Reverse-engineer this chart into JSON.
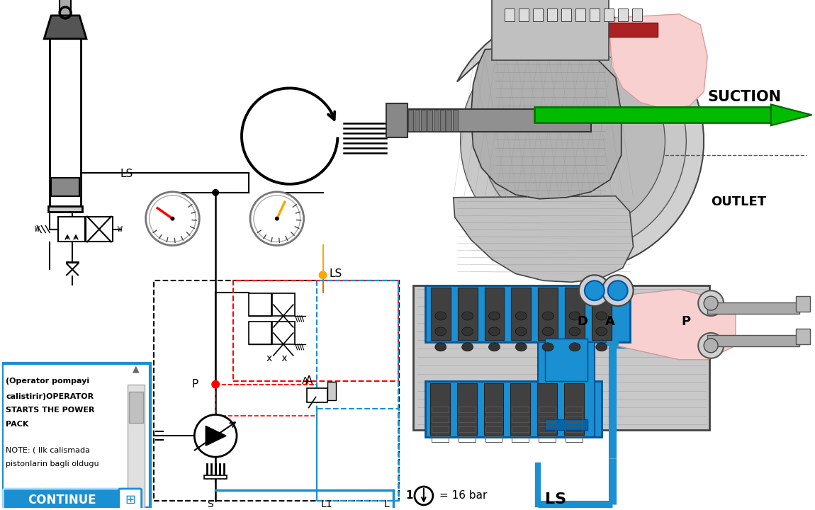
{
  "background_color": "#ffffff",
  "suction_label": "SUCTION",
  "outlet_label": "OUTLET",
  "ls_label": "LS",
  "d_label": "D",
  "a_label": "A",
  "p_label": "P",
  "continue_text": "CONTINUE",
  "text_box_lines": [
    "(Operator pompayi",
    "calistirir)OPERATOR",
    "STARTS THE POWER",
    "PACK",
    "",
    "NOTE: ( Ilk calismada",
    "pistonlarin bagli oldugu"
  ],
  "green_color": "#00bb00",
  "blue_color": "#1a8fd1",
  "red_color": "#cc0000",
  "orange_color": "#e07000",
  "gray_light": "#d0d0d0",
  "gray_mid": "#aaaaaa",
  "gray_dark": "#555555",
  "pink_light": "#f9d0d0",
  "hatch_gray": "#888888"
}
